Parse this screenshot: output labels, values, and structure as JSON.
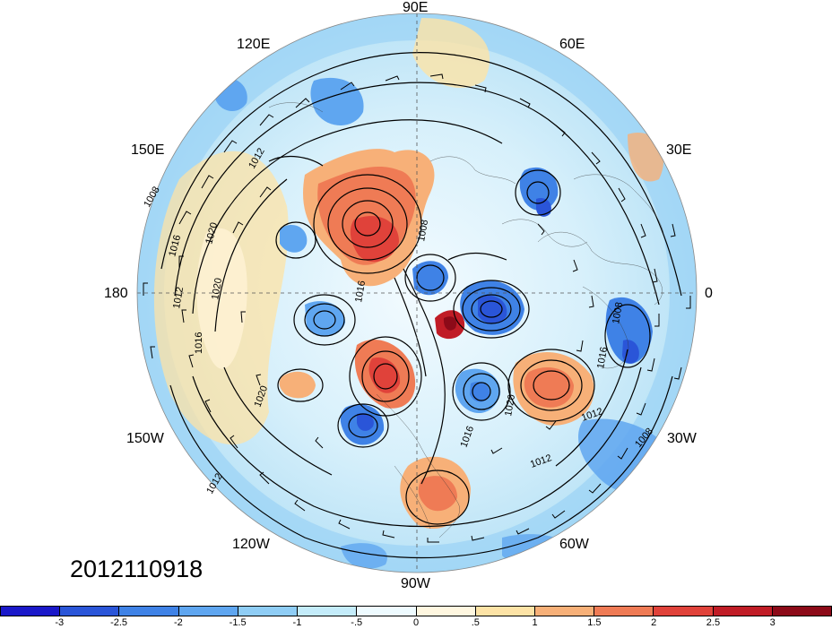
{
  "map": {
    "datestamp": "2012110918",
    "longitude_labels": {
      "lon_90e": "90E",
      "lon_60e": "60E",
      "lon_120e": "120E",
      "lon_30e": "30E",
      "lon_150e": "150E",
      "lon_180": "180",
      "lon_0": "0",
      "lon_150w": "150W",
      "lon_30w": "30W",
      "lon_120w": "120W",
      "lon_60w": "60W",
      "lon_90w": "90W"
    },
    "isobar_labels": [
      "1008",
      "1012",
      "1016",
      "1020",
      "1008",
      "1016",
      "1020",
      "1012",
      "1016",
      "1020",
      "1012",
      "1008",
      "1012",
      "1016",
      "1020",
      "1008",
      "1016",
      "1012"
    ]
  },
  "colorbar": {
    "ticks": [
      "-3",
      "-2.5",
      "-2",
      "-1.5",
      "-1",
      "-.5",
      "0",
      ".5",
      "1",
      "1.5",
      "2",
      "2.5",
      "3"
    ],
    "colors": [
      "#1a18c9",
      "#2a55d8",
      "#3f82e6",
      "#5fa6f0",
      "#8fcdf5",
      "#c4ecfa",
      "#eefbff",
      "#fff7e0",
      "#fde3a6",
      "#f7b078",
      "#ef7b55",
      "#e0423a",
      "#c01c26",
      "#8c0a18"
    ]
  }
}
